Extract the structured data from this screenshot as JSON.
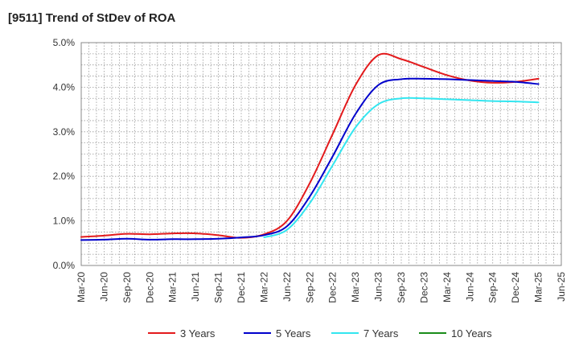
{
  "chart_data": {
    "type": "line",
    "title": "[9511]  Trend of StDev of ROA",
    "xlabel": "",
    "ylabel": "",
    "x": [
      "Mar-20",
      "Jun-20",
      "Sep-20",
      "Dec-20",
      "Mar-21",
      "Jun-21",
      "Sep-21",
      "Dec-21",
      "Mar-22",
      "Jun-22",
      "Sep-22",
      "Dec-22",
      "Mar-23",
      "Jun-23",
      "Sep-23",
      "Dec-23",
      "Mar-24",
      "Jun-24",
      "Sep-24",
      "Dec-24",
      "Mar-25",
      "Jun-25"
    ],
    "ylim": [
      0,
      5
    ],
    "yticks": [
      0,
      1,
      2,
      3,
      4,
      5
    ],
    "ytick_labels": [
      "0.0%",
      "1.0%",
      "2.0%",
      "3.0%",
      "4.0%",
      "5.0%"
    ],
    "grid": true,
    "legend_position": "bottom",
    "series": [
      {
        "name": "3 Years",
        "color": "#e31a1c",
        "values": [
          0.64,
          0.67,
          0.71,
          0.7,
          0.72,
          0.72,
          0.68,
          0.62,
          0.7,
          1.0,
          1.85,
          2.95,
          4.05,
          4.72,
          4.63,
          4.45,
          4.27,
          4.15,
          4.1,
          4.12,
          4.19,
          null
        ]
      },
      {
        "name": "5 Years",
        "color": "#0000cc",
        "values": [
          0.57,
          0.58,
          0.6,
          0.58,
          0.59,
          0.59,
          0.6,
          0.63,
          0.68,
          0.88,
          1.55,
          2.45,
          3.4,
          4.05,
          4.18,
          4.19,
          4.18,
          4.16,
          4.14,
          4.12,
          4.07,
          null
        ]
      },
      {
        "name": "7 Years",
        "color": "#33e6f0",
        "values": [
          null,
          null,
          null,
          null,
          null,
          null,
          null,
          null,
          0.63,
          0.8,
          1.4,
          2.25,
          3.1,
          3.62,
          3.75,
          3.75,
          3.73,
          3.71,
          3.69,
          3.68,
          3.66,
          null
        ]
      },
      {
        "name": "10 Years",
        "color": "#1a8c1a",
        "values": [
          null,
          null,
          null,
          null,
          null,
          null,
          null,
          null,
          null,
          null,
          null,
          null,
          null,
          null,
          null,
          null,
          null,
          null,
          null,
          null,
          null,
          null
        ]
      }
    ]
  }
}
